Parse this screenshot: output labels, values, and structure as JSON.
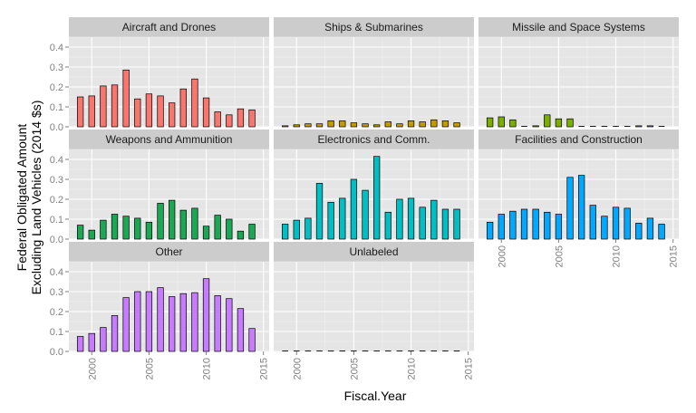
{
  "chart_data": {
    "type": "bar",
    "xlabel": "Fiscal.Year",
    "ylabel_lines": [
      "Federal Obligated Amount",
      "Excluding Land Vehicles (2014 $s)"
    ],
    "ylim": [
      0,
      0.45
    ],
    "y_ticks": [
      "0.0",
      "0.1",
      "0.2",
      "0.3",
      "0.4"
    ],
    "xlim": [
      1998,
      2015.5
    ],
    "x_ticks": [
      "2000",
      "2005",
      "2010",
      "2015"
    ],
    "grid": true,
    "facet_layout": "3 columns x 3 rows, panels filled row by row",
    "bar_outline_color": "#000000",
    "panel_background": "#e5e5e5",
    "strip_background": "#cccccc",
    "years": [
      1999,
      2000,
      2001,
      2002,
      2003,
      2004,
      2005,
      2006,
      2007,
      2008,
      2009,
      2010,
      2011,
      2012,
      2013,
      2014
    ],
    "panels": [
      {
        "title": "Aircraft and Drones",
        "color": "#f8766d",
        "values": [
          0.15,
          0.155,
          0.205,
          0.21,
          0.285,
          0.14,
          0.165,
          0.155,
          0.12,
          0.19,
          0.24,
          0.145,
          0.075,
          0.06,
          0.09,
          0.085
        ]
      },
      {
        "title": "Ships & Submarines",
        "color": "#c49a00",
        "values": [
          0.005,
          0.01,
          0.015,
          0.015,
          0.03,
          0.03,
          0.02,
          0.015,
          0.01,
          0.025,
          0.015,
          0.03,
          0.025,
          0.035,
          0.03,
          0.02
        ]
      },
      {
        "title": "Missile and Space Systems",
        "color": "#7cae00",
        "values": [
          0.045,
          0.05,
          0.035,
          0.0,
          0.005,
          0.06,
          0.04,
          0.04,
          0.0,
          0.0,
          0.0,
          0.0,
          0.0,
          0.005,
          0.005,
          0.0
        ]
      },
      {
        "title": "Weapons and Ammunition",
        "color": "#1ba854",
        "values": [
          0.07,
          0.045,
          0.095,
          0.125,
          0.115,
          0.105,
          0.085,
          0.18,
          0.195,
          0.145,
          0.155,
          0.065,
          0.12,
          0.1,
          0.04,
          0.075
        ]
      },
      {
        "title": "Electronics and Comm.",
        "color": "#00bfc4",
        "values": [
          0.075,
          0.095,
          0.105,
          0.28,
          0.185,
          0.205,
          0.3,
          0.245,
          0.415,
          0.135,
          0.2,
          0.205,
          0.16,
          0.195,
          0.15,
          0.15
        ]
      },
      {
        "title": "Facilities and Construction",
        "color": "#00a9ff",
        "values": [
          0.085,
          0.125,
          0.14,
          0.15,
          0.15,
          0.135,
          0.125,
          0.31,
          0.32,
          0.17,
          0.115,
          0.16,
          0.155,
          0.08,
          0.105,
          0.075
        ]
      },
      {
        "title": "Other",
        "color": "#c77cff",
        "values": [
          0.075,
          0.09,
          0.12,
          0.18,
          0.27,
          0.3,
          0.3,
          0.32,
          0.275,
          0.29,
          0.295,
          0.365,
          0.28,
          0.265,
          0.215,
          0.115
        ]
      },
      {
        "title": "Unlabeled",
        "color": "#ff61c3",
        "values": [
          0.0,
          0.0,
          0.0,
          0.0,
          0.0,
          0.0,
          0.0,
          0.0,
          0.0,
          0.0,
          0.0,
          0.0,
          0.0,
          0.0,
          0.0,
          0.0
        ]
      }
    ]
  }
}
